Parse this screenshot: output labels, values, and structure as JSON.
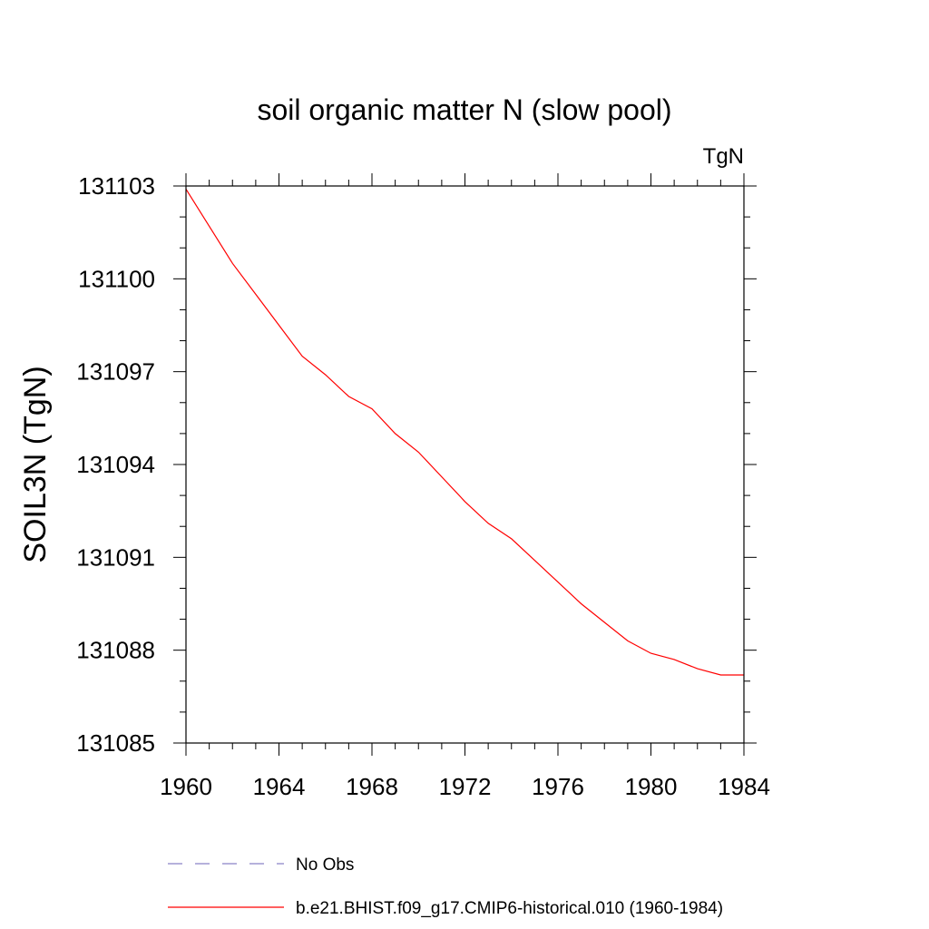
{
  "chart_data": {
    "type": "line",
    "title": "soil organic matter N (slow pool)",
    "units_label": "TgN",
    "ylabel": "SOIL3N  (TgN)",
    "xlabel": "",
    "xlim": [
      1960,
      1984
    ],
    "ylim": [
      131085,
      131103
    ],
    "x_ticks": [
      1960,
      1964,
      1968,
      1972,
      1976,
      1980,
      1984
    ],
    "y_ticks": [
      131085,
      131088,
      131091,
      131094,
      131097,
      131100,
      131103
    ],
    "x_tick_labels": [
      "1960",
      "1964",
      "1968",
      "1972",
      "1976",
      "1980",
      "1984"
    ],
    "y_tick_labels": [
      "131085",
      "131088",
      "131091",
      "131094",
      "131097",
      "131100",
      "131103"
    ],
    "x_minor_step": 1,
    "y_minor_step": 1,
    "grid": false,
    "legend_position": "bottom",
    "series": [
      {
        "name": "b.e21.BHIST.f09_g17.CMIP6-historical.010 (1960-1984)",
        "color": "#ff0000",
        "dash": "solid",
        "x": [
          1960,
          1961,
          1962,
          1963,
          1964,
          1965,
          1966,
          1967,
          1968,
          1969,
          1970,
          1971,
          1972,
          1973,
          1974,
          1975,
          1976,
          1977,
          1978,
          1979,
          1980,
          1981,
          1982,
          1983,
          1984
        ],
        "y": [
          131102.9,
          131101.7,
          131100.5,
          131099.5,
          131098.5,
          131097.5,
          131096.9,
          131096.2,
          131095.8,
          131095.0,
          131094.4,
          131093.6,
          131092.8,
          131092.1,
          131091.6,
          131090.9,
          131090.2,
          131089.5,
          131088.9,
          131088.3,
          131087.9,
          131087.7,
          131087.4,
          131087.2,
          131087.2
        ]
      },
      {
        "name": "No Obs",
        "color": "#8a82c8",
        "dash": "dashed",
        "x": [],
        "y": []
      }
    ]
  }
}
